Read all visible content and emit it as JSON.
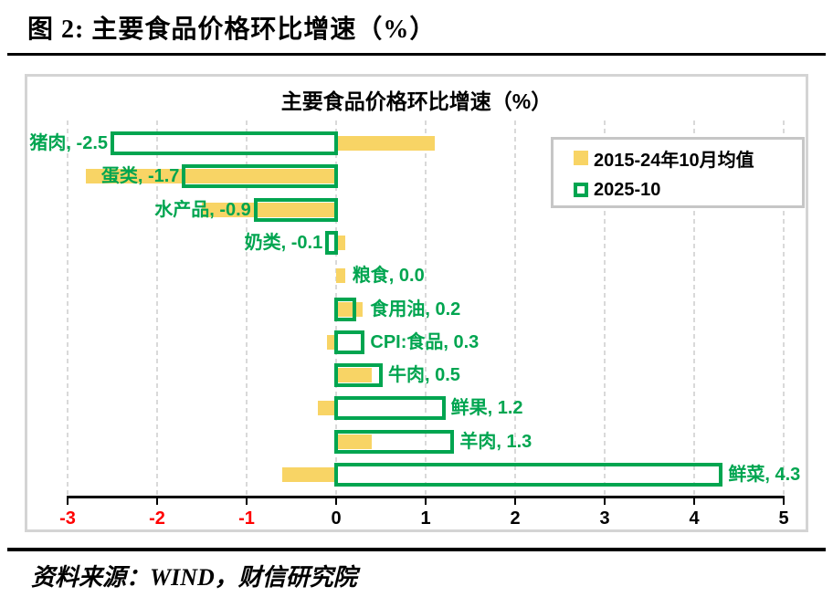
{
  "page": {
    "figure_title": "图 2:  主要食品价格环比增速（%）",
    "source": "资料来源：WIND，财信研究院"
  },
  "chart_data": {
    "type": "bar",
    "orientation": "horizontal",
    "title": "主要食品价格环比增速（%）",
    "categories": [
      "猪肉",
      "蛋类",
      "水产品",
      "奶类",
      "粮食",
      "食用油",
      "CPI:食品",
      "牛肉",
      "鲜果",
      "羊肉",
      "鲜菜"
    ],
    "series": [
      {
        "name": "2015-24年10月均值",
        "style": "filled",
        "values": [
          1.1,
          -2.8,
          -1.5,
          0.1,
          0.1,
          0.3,
          -0.1,
          0.4,
          -0.2,
          0.4,
          -0.6
        ]
      },
      {
        "name": "2025-10",
        "style": "outline",
        "values": [
          -2.5,
          -1.7,
          -0.9,
          -0.1,
          0.0,
          0.2,
          0.3,
          0.5,
          1.2,
          1.3,
          4.3
        ]
      }
    ],
    "data_labels": [
      "猪肉, -2.5",
      "蛋类, -1.7",
      "水产品, -0.9",
      "奶类, -0.1",
      "粮食, 0.0",
      "食用油, 0.2",
      "CPI:食品, 0.3",
      "牛肉, 0.5",
      "鲜果, 1.2",
      "羊肉, 1.3",
      "鲜菜, 4.3"
    ],
    "xlim": [
      -3,
      5
    ],
    "x_ticks": [
      -3,
      -2,
      -1,
      0,
      1,
      2,
      3,
      4,
      5
    ],
    "grid": "vertical-dashed",
    "legend_position": "top-right",
    "colors": {
      "avg_bar": "#F8D465",
      "current_bar": "#00A550",
      "label_text": "#00A550",
      "negative_tick": "#FF0000",
      "positive_tick": "#000000",
      "gridline": "#D9D9D9",
      "axis": "#000000"
    }
  }
}
